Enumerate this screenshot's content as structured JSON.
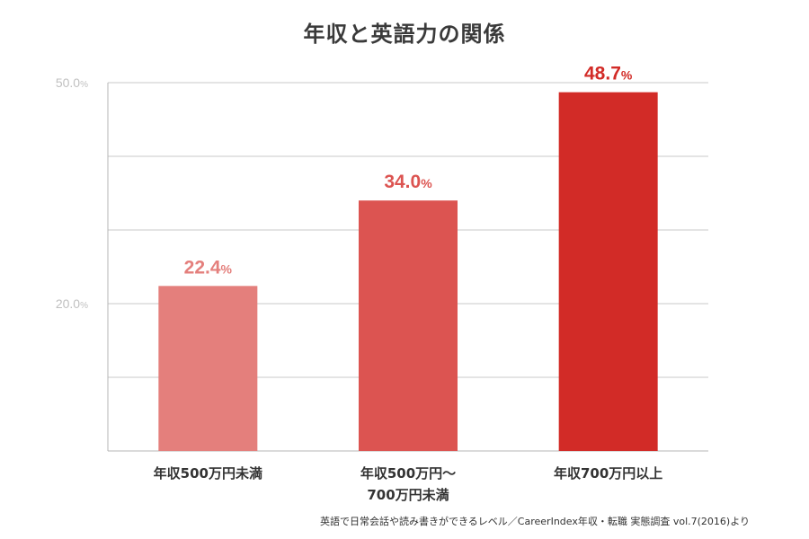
{
  "chart_data": {
    "type": "bar",
    "title": "年収と英語力の関係",
    "categories": [
      [
        "年収500万円未満"
      ],
      [
        "年収500万円～",
        "700万円未満"
      ],
      [
        "年収700万円以上"
      ]
    ],
    "values": [
      22.4,
      34.0,
      48.7
    ],
    "value_labels": [
      "22.4",
      "34.0",
      "48.7"
    ],
    "value_unit": "%",
    "bar_colors": [
      "#e47f7c",
      "#dc5451",
      "#d22b27"
    ],
    "ylim": [
      0,
      50
    ],
    "yticks": [
      0,
      10,
      20,
      30,
      40,
      50
    ],
    "ytick_labels": [
      {
        "value": 50,
        "text": "50.0",
        "unit": "%"
      },
      {
        "value": 20,
        "text": "20.0",
        "unit": "%"
      }
    ],
    "grid": true,
    "xlabel": "",
    "ylabel": "",
    "source": "英語で日常会話や読み書きができるレベル／CareerIndex年収・転職 実態調査 vol.7(2016)より"
  },
  "colors": {
    "title": "#3a3a3a",
    "grid": "#c8c8c8",
    "axis": "#b4b4b4",
    "tick_label": "#c0c0c0",
    "category_label": "#333333"
  }
}
